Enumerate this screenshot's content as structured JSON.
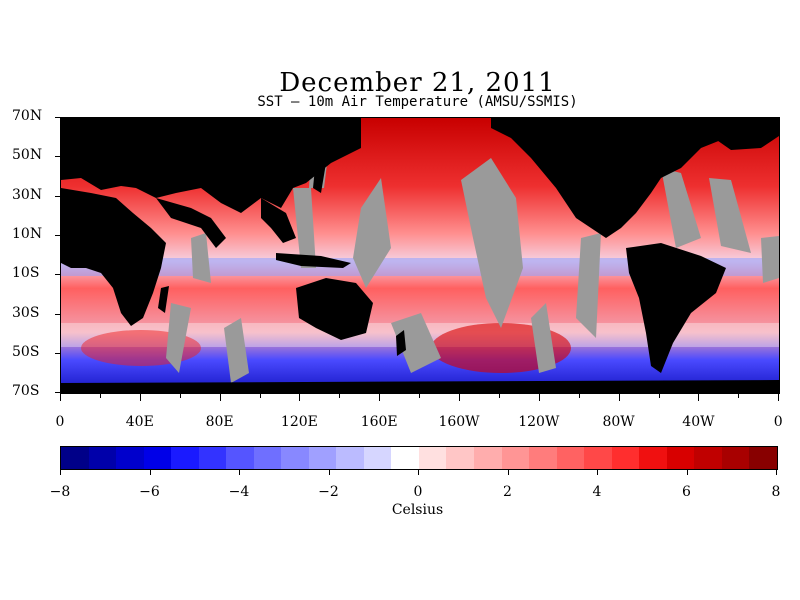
{
  "title": "December 21, 2011",
  "subtitle": "SST – 10m Air Temperature (AMSU/SSMIS)",
  "map": {
    "lat_labels": [
      "70N",
      "50N",
      "30N",
      "10N",
      "10S",
      "30S",
      "50S",
      "70S"
    ],
    "lon_labels": [
      "0",
      "40E",
      "80E",
      "120E",
      "160E",
      "160W",
      "120W",
      "80W",
      "40W",
      "0"
    ],
    "land_color": "#000000",
    "no_data_color": "#9a9a9a"
  },
  "colorbar": {
    "min": -8,
    "max": 8,
    "tick_labels": [
      "−8",
      "−6",
      "−4",
      "−2",
      "0",
      "2",
      "4",
      "6",
      "8"
    ],
    "units": "Celsius",
    "colors": [
      "#000088",
      "#0000aa",
      "#0000cc",
      "#0000e8",
      "#1a1aff",
      "#3333ff",
      "#5555ff",
      "#6f6fff",
      "#8888ff",
      "#a0a0ff",
      "#bbbbff",
      "#d6d6ff",
      "#ffffff",
      "#ffe0e0",
      "#ffc6c6",
      "#ffadad",
      "#ff9595",
      "#ff7c7c",
      "#ff6262",
      "#ff4848",
      "#ff2e2e",
      "#f01010",
      "#d80000",
      "#c00000",
      "#a80000",
      "#880000"
    ]
  }
}
